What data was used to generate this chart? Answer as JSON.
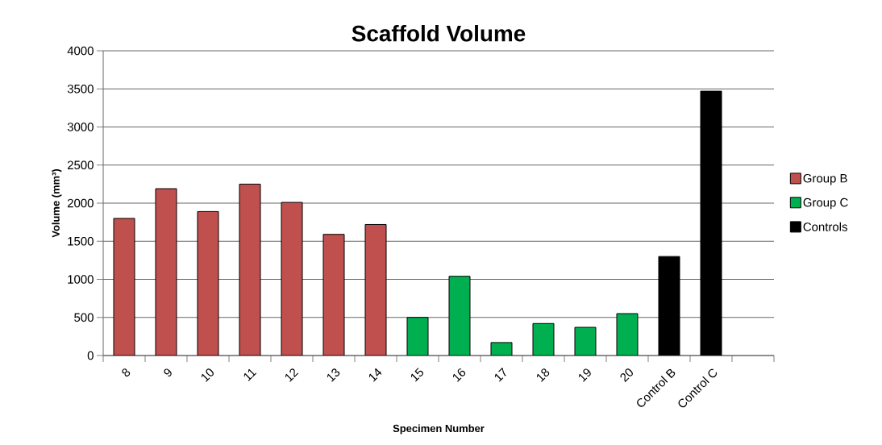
{
  "chart_data": {
    "type": "bar",
    "title": "Scaffold Volume",
    "xlabel": "Specimen Number",
    "ylabel": "Volume (mm³)",
    "categories": [
      "8",
      "9",
      "10",
      "11",
      "12",
      "13",
      "14",
      "15",
      "16",
      "17",
      "18",
      "19",
      "20",
      "Control B",
      "Control C",
      null
    ],
    "series": [
      {
        "name": "Group B",
        "color": "#c0504d",
        "values": [
          1800,
          2190,
          1890,
          2250,
          2010,
          1590,
          1720,
          null,
          null,
          null,
          null,
          null,
          null,
          null,
          null,
          null
        ]
      },
      {
        "name": "Group C",
        "color": "#00b050",
        "values": [
          null,
          null,
          null,
          null,
          null,
          null,
          null,
          500,
          1040,
          170,
          420,
          370,
          550,
          null,
          null,
          null
        ]
      },
      {
        "name": "Controls",
        "color": "#000000",
        "values": [
          null,
          null,
          null,
          null,
          null,
          null,
          null,
          null,
          null,
          null,
          null,
          null,
          null,
          1300,
          3470,
          null
        ]
      }
    ],
    "ylim": [
      0,
      4000
    ],
    "yticks": [
      0,
      500,
      1000,
      1500,
      2000,
      2500,
      3000,
      3500,
      4000
    ],
    "grid": "y",
    "legend": "right"
  }
}
